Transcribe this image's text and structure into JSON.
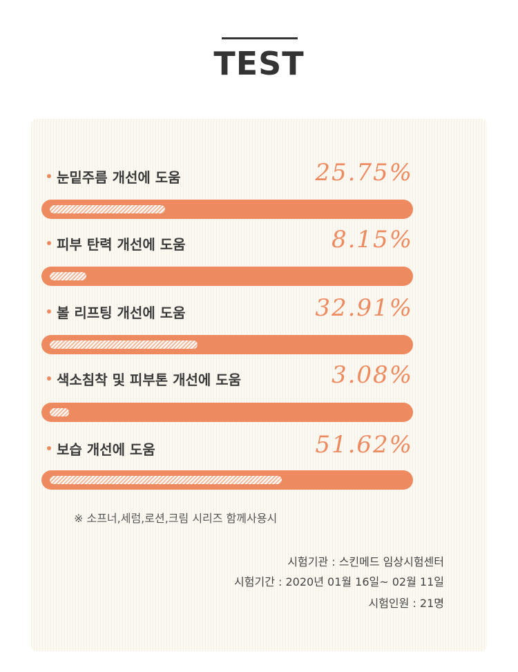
{
  "header": {
    "title": "TEST"
  },
  "items": [
    {
      "label": "눈밑주름 개선에 도움",
      "percent_text": "25.75%",
      "value": 25.75
    },
    {
      "label": "피부 탄력 개선에 도움",
      "percent_text": "8.15%",
      "value": 8.15
    },
    {
      "label": "볼 리프팅 개선에 도움",
      "percent_text": "32.91%",
      "value": 32.91
    },
    {
      "label": "색소침착 및 피부톤 개선에 도움",
      "percent_text": "3.08%",
      "value": 3.08
    },
    {
      "label": "보습 개선에 도움",
      "percent_text": "51.62%",
      "value": 51.62
    }
  ],
  "note": "※ 소프너,세럼,로션,크림 시리즈 함께사용시",
  "info": {
    "institution": "시험기관 : 스킨메드 임상시험센터",
    "period": "시험기간 : 2020년 01월 16일~ 02월 11일",
    "participants": "시험인원 : 21명"
  },
  "colors": {
    "accent": "#ee8a5f",
    "panel_bg": "#fcf9f2",
    "text_dark": "#333333"
  }
}
